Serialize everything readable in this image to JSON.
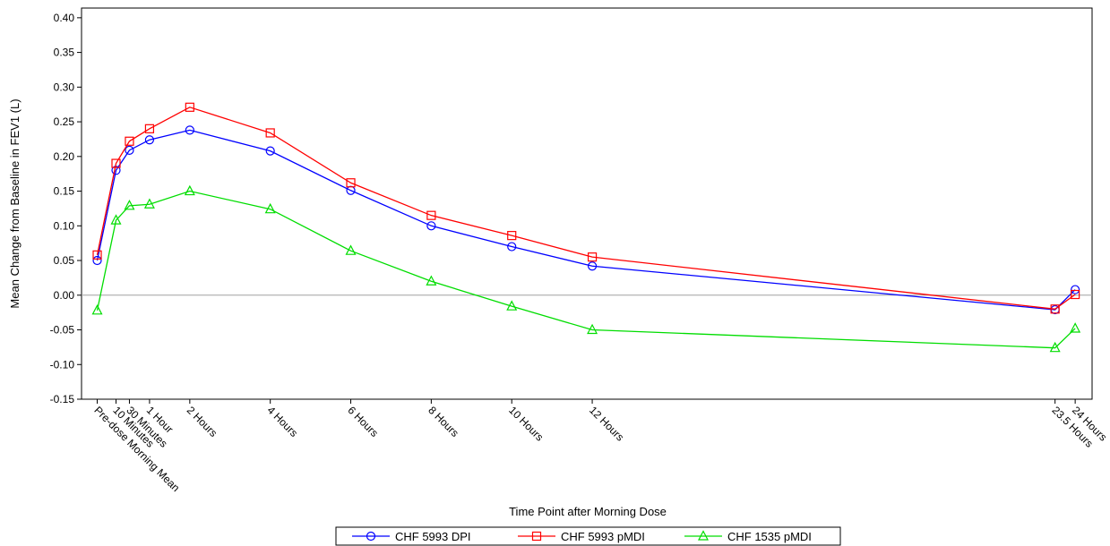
{
  "chart_data": {
    "type": "line",
    "xlabel": "Time Point after Morning Dose",
    "ylabel": "Mean Change from Baseline in FEV1 (L)",
    "ylim": [
      -0.15,
      0.4
    ],
    "yticks": [
      "-0.15",
      "-0.10",
      "-0.05",
      "0.00",
      "0.05",
      "0.10",
      "0.15",
      "0.20",
      "0.25",
      "0.30",
      "0.35",
      "0.40"
    ],
    "x_hours": [
      -0.3,
      0.167,
      0.5,
      1,
      2,
      4,
      6,
      8,
      10,
      12,
      23.5,
      24
    ],
    "categories": [
      "Pre-dose Morning Mean",
      "10 Minutes",
      "30 Minutes",
      "1 Hour",
      "2 Hours",
      "4 Hours",
      "6 Hours",
      "8 Hours",
      "10 Hours",
      "12 Hours",
      "23.5 Hours",
      "24 Hours"
    ],
    "reference_line_y": 0.0,
    "legend_position": "bottom",
    "series": [
      {
        "name": "CHF 5993 DPI",
        "color": "#0000ff",
        "marker": "circle",
        "values": [
          0.05,
          0.18,
          0.209,
          0.224,
          0.238,
          0.208,
          0.151,
          0.1,
          0.07,
          0.042,
          -0.021,
          0.008
        ]
      },
      {
        "name": "CHF 5993 pMDI",
        "color": "#ff0000",
        "marker": "square",
        "values": [
          0.058,
          0.19,
          0.222,
          0.24,
          0.271,
          0.234,
          0.162,
          0.115,
          0.086,
          0.055,
          -0.02,
          0.001
        ]
      },
      {
        "name": "CHF 1535 pMDI",
        "color": "#00dd00",
        "marker": "triangle",
        "values": [
          -0.022,
          0.108,
          0.129,
          0.131,
          0.15,
          0.124,
          0.064,
          0.02,
          -0.016,
          -0.05,
          -0.076,
          -0.048
        ]
      }
    ]
  }
}
